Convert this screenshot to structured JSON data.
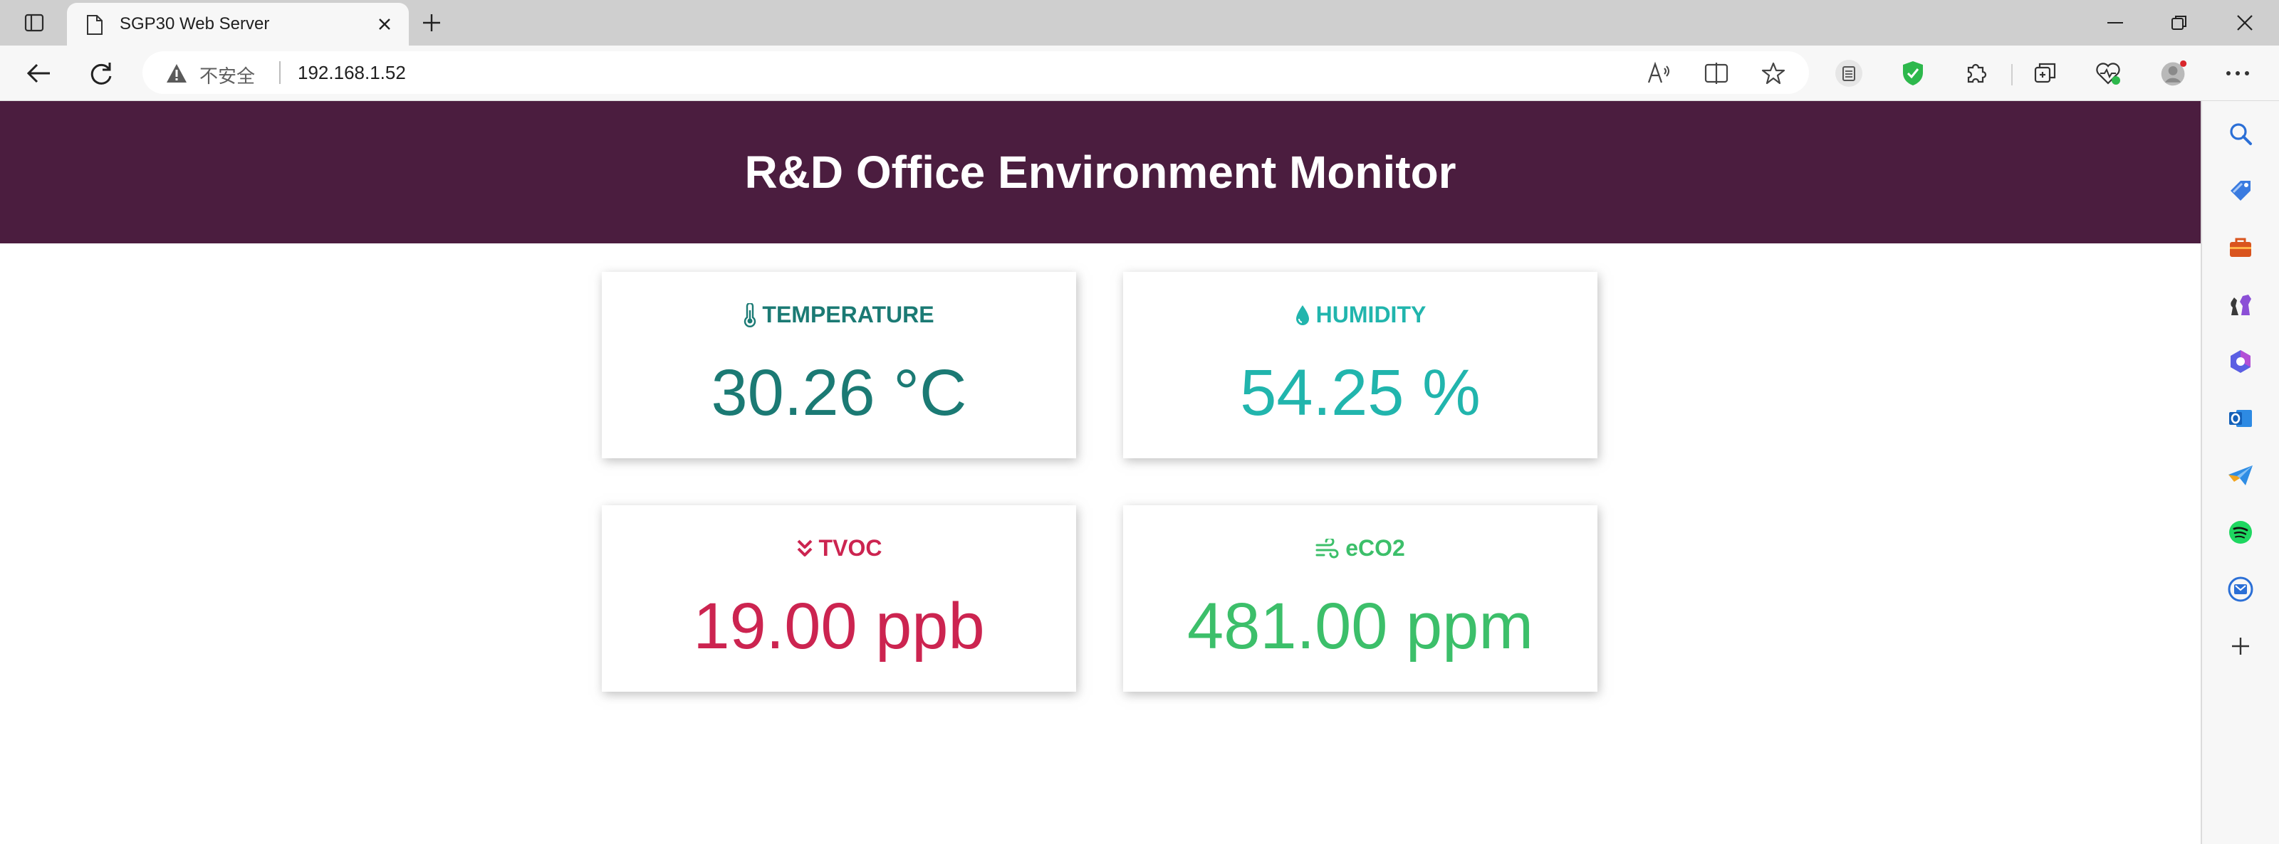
{
  "browser": {
    "tab": {
      "title": "SGP30 Web Server"
    },
    "address_bar": {
      "security_label": "不安全",
      "url": "192.168.1.52"
    }
  },
  "page": {
    "header_title": "R&D Office Environment Monitor",
    "cards": {
      "temperature": {
        "label": "TEMPERATURE",
        "value": "30.26 °C",
        "color": "#1b7a74"
      },
      "humidity": {
        "label": "HUMIDITY",
        "value": "54.25 %",
        "color": "#21b5ad"
      },
      "tvoc": {
        "label": "TVOC",
        "value": "19.00 ppb",
        "color": "#cc2450"
      },
      "eco2": {
        "label": "eCO2",
        "value": "481.00 ppm",
        "color": "#3cbf6a"
      }
    },
    "header_color": "#4b1d3f"
  },
  "icons": {
    "toolbar": [
      "read-aloud-icon",
      "split-screen-icon",
      "favorite-star-icon",
      "collections-icon",
      "shield-icon",
      "extensions-icon",
      "workspaces-icon",
      "browser-essentials-icon",
      "profile-avatar-icon",
      "more-menu-icon"
    ],
    "sidebar": [
      "search-icon",
      "shopping-tag-icon",
      "tools-icon",
      "games-icon",
      "office-icon",
      "outlook-icon",
      "send-icon",
      "spotify-icon",
      "extension-icon",
      "add-icon"
    ]
  }
}
